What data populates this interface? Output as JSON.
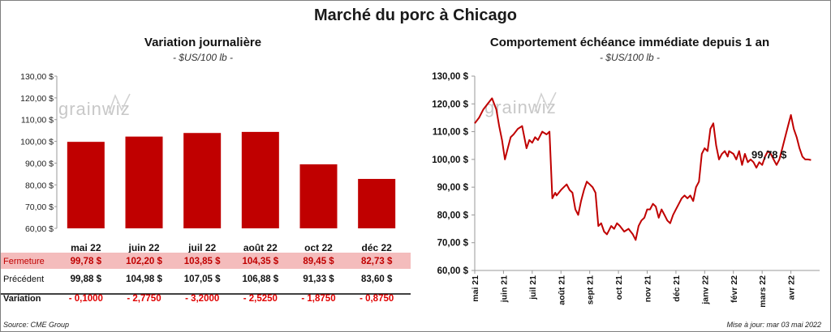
{
  "title": "Marché du porc à Chicago",
  "source": "Source: CME Group",
  "updated": "Mise à jour: mar 03 mai 2022",
  "watermark": "grainwiz",
  "colors": {
    "bar": "#c00000",
    "line": "#c00000",
    "row_highlight": "#f4bcbc",
    "negative": "#e00000"
  },
  "chart_data": [
    {
      "type": "bar",
      "title": "Variation journalière",
      "subtitle": "- $US/100 lb -",
      "ylim": [
        60,
        130
      ],
      "y_ticks": [
        60,
        70,
        80,
        90,
        100,
        110,
        120,
        130
      ],
      "y_tick_labels": [
        "60,00 $",
        "70,00 $",
        "80,00 $",
        "90,00 $",
        "100,00 $",
        "110,00 $",
        "120,00 $",
        "130,00 $"
      ],
      "categories": [
        "mai 22",
        "juin 22",
        "juil 22",
        "août 22",
        "oct 22",
        "déc 22"
      ],
      "values": [
        99.78,
        102.2,
        103.85,
        104.35,
        89.45,
        82.73
      ],
      "table": {
        "rows": [
          {
            "label": "Fermeture",
            "cells": [
              "99,78  $",
              "102,20  $",
              "103,85  $",
              "104,35  $",
              "89,45  $",
              "82,73  $"
            ]
          },
          {
            "label": "Précédent",
            "cells": [
              "99,88  $",
              "104,98  $",
              "107,05  $",
              "106,88  $",
              "91,33  $",
              "83,60  $"
            ]
          },
          {
            "label": "Variation",
            "cells": [
              "- 0,1000",
              "- 2,7750",
              "- 3,2000",
              "- 2,5250",
              "- 1,8750",
              "- 0,8750"
            ]
          }
        ]
      }
    },
    {
      "type": "line",
      "title": "Comportement  échéance immédiate depuis 1 an",
      "subtitle": "- $US/100 lb -",
      "ylim": [
        60,
        130
      ],
      "y_ticks": [
        60,
        70,
        80,
        90,
        100,
        110,
        120,
        130
      ],
      "y_tick_labels": [
        "60,00 $",
        "70,00 $",
        "80,00 $",
        "90,00 $",
        "100,00 $",
        "110,00 $",
        "120,00 $",
        "130,00 $"
      ],
      "x_tick_labels": [
        "mai 21",
        "juin 21",
        "juil 21",
        "août 21",
        "sept 21",
        "oct 21",
        "nov 21",
        "déc 21",
        "janv 22",
        "févr 22",
        "mars 22",
        "avr 22"
      ],
      "xlim": [
        0,
        12
      ],
      "last_value_label": "99,78 $",
      "series": [
        {
          "x": [
            0,
            0.15,
            0.3,
            0.45,
            0.6,
            0.75,
            0.85,
            0.95,
            1.05,
            1.15,
            1.25,
            1.35,
            1.5,
            1.65,
            1.8,
            1.9,
            2.0,
            2.1,
            2.2,
            2.35,
            2.5,
            2.6,
            2.7,
            2.8,
            2.85,
            3.0,
            3.1,
            3.2,
            3.3,
            3.4,
            3.5,
            3.6,
            3.7,
            3.8,
            3.9,
            4.0,
            4.1,
            4.2,
            4.3,
            4.4,
            4.5,
            4.6,
            4.75,
            4.85,
            4.95,
            5.05,
            5.2,
            5.35,
            5.5,
            5.6,
            5.7,
            5.8,
            5.9,
            6.0,
            6.1,
            6.2,
            6.3,
            6.4,
            6.5,
            6.6,
            6.7,
            6.8,
            6.9,
            7.0,
            7.1,
            7.2,
            7.3,
            7.4,
            7.5,
            7.6,
            7.7,
            7.8,
            7.9,
            8.0,
            8.1,
            8.2,
            8.3,
            8.4,
            8.5,
            8.6,
            8.7,
            8.8,
            8.85,
            9.0,
            9.1,
            9.2,
            9.3,
            9.4,
            9.5,
            9.6,
            9.7,
            9.8,
            9.9,
            10.0,
            10.1,
            10.2,
            10.3,
            10.4,
            10.5,
            10.6,
            10.7,
            10.8,
            10.9,
            11.0,
            11.1,
            11.2,
            11.3,
            11.4,
            11.5,
            11.6,
            11.7
          ],
          "values": [
            113,
            115,
            118,
            120,
            122,
            118,
            112,
            107,
            100,
            104,
            108,
            109,
            111,
            112,
            104,
            107,
            106,
            108,
            107,
            110,
            109,
            110,
            86,
            88,
            87,
            89,
            90,
            91,
            89,
            88,
            82,
            80,
            85,
            89,
            92,
            91,
            90,
            88,
            76,
            77,
            74,
            73,
            76,
            75,
            77,
            76,
            74,
            75,
            73,
            71,
            76,
            78,
            79,
            82,
            82,
            84,
            83,
            79,
            82,
            80,
            78,
            77,
            80,
            82,
            84,
            86,
            87,
            86,
            87,
            85,
            90,
            92,
            102,
            104,
            103,
            111,
            113,
            105,
            100,
            102,
            103,
            101,
            103,
            102,
            100,
            103,
            98,
            102,
            99,
            100,
            99,
            97,
            99,
            98,
            101,
            103,
            102,
            100,
            98,
            100,
            104,
            108,
            112,
            116,
            111,
            108,
            104,
            101,
            100,
            100,
            99.78
          ]
        }
      ]
    }
  ]
}
